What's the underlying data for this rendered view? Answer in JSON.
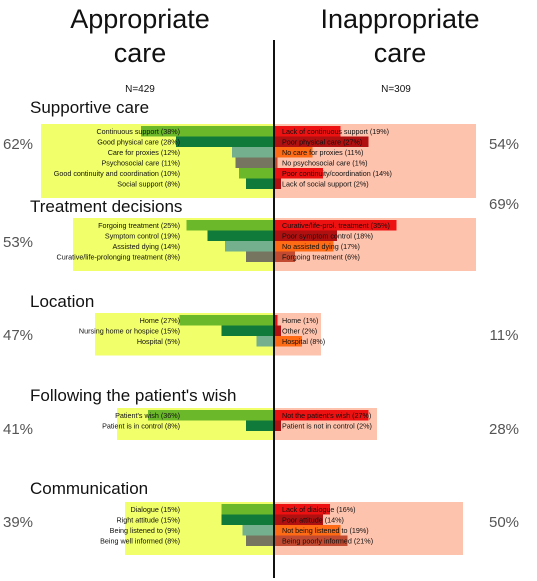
{
  "chart_data": {
    "type": "bar",
    "left_heading_line1": "Appropriate",
    "left_heading_line2": "care",
    "right_heading_line1": "Inappropriate",
    "right_heading_line2": "care",
    "left_n": "N=429",
    "right_n": "N=309",
    "colors": {
      "left_panel": "#f1ff6a",
      "right_panel": "#fdc3ad",
      "left_bars": [
        "#6bb82a",
        "#107a3a",
        "#74b08d",
        "#767660"
      ],
      "right_bars": [
        "#ee1111",
        "#b01010",
        "#ff6a14",
        "#c24a30"
      ]
    },
    "sections": [
      {
        "title": "Supportive care",
        "left_pct": "62%",
        "right_pct": "54%",
        "left": [
          {
            "label": "Continuous support (38%)",
            "value": 38,
            "tone": 0
          },
          {
            "label": "Good physical care (28%)",
            "value": 28,
            "tone": 1
          },
          {
            "label": "Care for proxies (12%)",
            "value": 12,
            "tone": 2
          },
          {
            "label": "Psychosocial care (11%)",
            "value": 11,
            "tone": 3
          },
          {
            "label": "Good continuity and coordination (10%)",
            "value": 10,
            "tone": 0
          },
          {
            "label": "Social support (8%)",
            "value": 8,
            "tone": 1
          }
        ],
        "right": [
          {
            "label": "Lack of continuous support (19%)",
            "value": 19,
            "tone": 0
          },
          {
            "label": "Poor physical care (27%)",
            "value": 27,
            "tone": 1
          },
          {
            "label": "No care for proxies (11%)",
            "value": 11,
            "tone": 2
          },
          {
            "label": "No psychosocial care (1%)",
            "value": 1,
            "tone": 3
          },
          {
            "label": "Poor continuity/coordination (14%)",
            "value": 14,
            "tone": 0
          },
          {
            "label": "Lack of social support (2%)",
            "value": 2,
            "tone": 1
          }
        ]
      },
      {
        "title": "Treatment decisions",
        "left_pct": "53%",
        "right_pct": "69%",
        "left": [
          {
            "label": "Forgoing treatment (25%)",
            "value": 25,
            "tone": 0
          },
          {
            "label": "Symptom control (19%)",
            "value": 19,
            "tone": 1
          },
          {
            "label": "Assisted dying  (14%)",
            "value": 14,
            "tone": 2
          },
          {
            "label": "Curative/life-prolonging treatment (8%)",
            "value": 8,
            "tone": 3
          }
        ],
        "right": [
          {
            "label": "Curative/life-prol. treatment (35%)",
            "value": 35,
            "tone": 0
          },
          {
            "label": "Poor symptom control (18%)",
            "value": 18,
            "tone": 1
          },
          {
            "label": "No assisted dying (17%)",
            "value": 17,
            "tone": 2
          },
          {
            "label": "Forgoing treatment  (6%)",
            "value": 6,
            "tone": 3
          }
        ]
      },
      {
        "title": "Location",
        "left_pct": "47%",
        "right_pct": "11%",
        "left": [
          {
            "label": "Home (27%)",
            "value": 27,
            "tone": 0
          },
          {
            "label": "Nursing home or hospice (15%)",
            "value": 15,
            "tone": 1
          },
          {
            "label": "Hospital (5%)",
            "value": 5,
            "tone": 2
          }
        ],
        "right": [
          {
            "label": "Home (1%)",
            "value": 1,
            "tone": 0
          },
          {
            "label": "Other (2%)",
            "value": 2,
            "tone": 1
          },
          {
            "label": "Hospital (8%)",
            "value": 8,
            "tone": 2
          }
        ]
      },
      {
        "title": "Following the patient's wish",
        "left_pct": "41%",
        "right_pct": "28%",
        "left": [
          {
            "label": "Patient's wish (36%)",
            "value": 36,
            "tone": 0
          },
          {
            "label": "Patient is in control (8%)",
            "value": 8,
            "tone": 1
          }
        ],
        "right": [
          {
            "label": "Not the patient's wish (27%)",
            "value": 27,
            "tone": 0
          },
          {
            "label": "Patient is not in control (2%)",
            "value": 2,
            "tone": 1
          }
        ]
      },
      {
        "title": "Communication",
        "left_pct": "39%",
        "right_pct": "50%",
        "left": [
          {
            "label": "Dialogue (15%)",
            "value": 15,
            "tone": 0
          },
          {
            "label": "Right attitude (15%)",
            "value": 15,
            "tone": 1
          },
          {
            "label": "Being listened to (9%)",
            "value": 9,
            "tone": 2
          },
          {
            "label": "Being well informed (8%)",
            "value": 8,
            "tone": 3
          }
        ],
        "right": [
          {
            "label": "Lack of dialogue (16%)",
            "value": 16,
            "tone": 0
          },
          {
            "label": "Poor attitude (14%)",
            "value": 14,
            "tone": 1
          },
          {
            "label": "Not being listened to (19%)",
            "value": 19,
            "tone": 2
          },
          {
            "label": "Being poorly informed (21%)",
            "value": 21,
            "tone": 3
          }
        ]
      }
    ]
  }
}
